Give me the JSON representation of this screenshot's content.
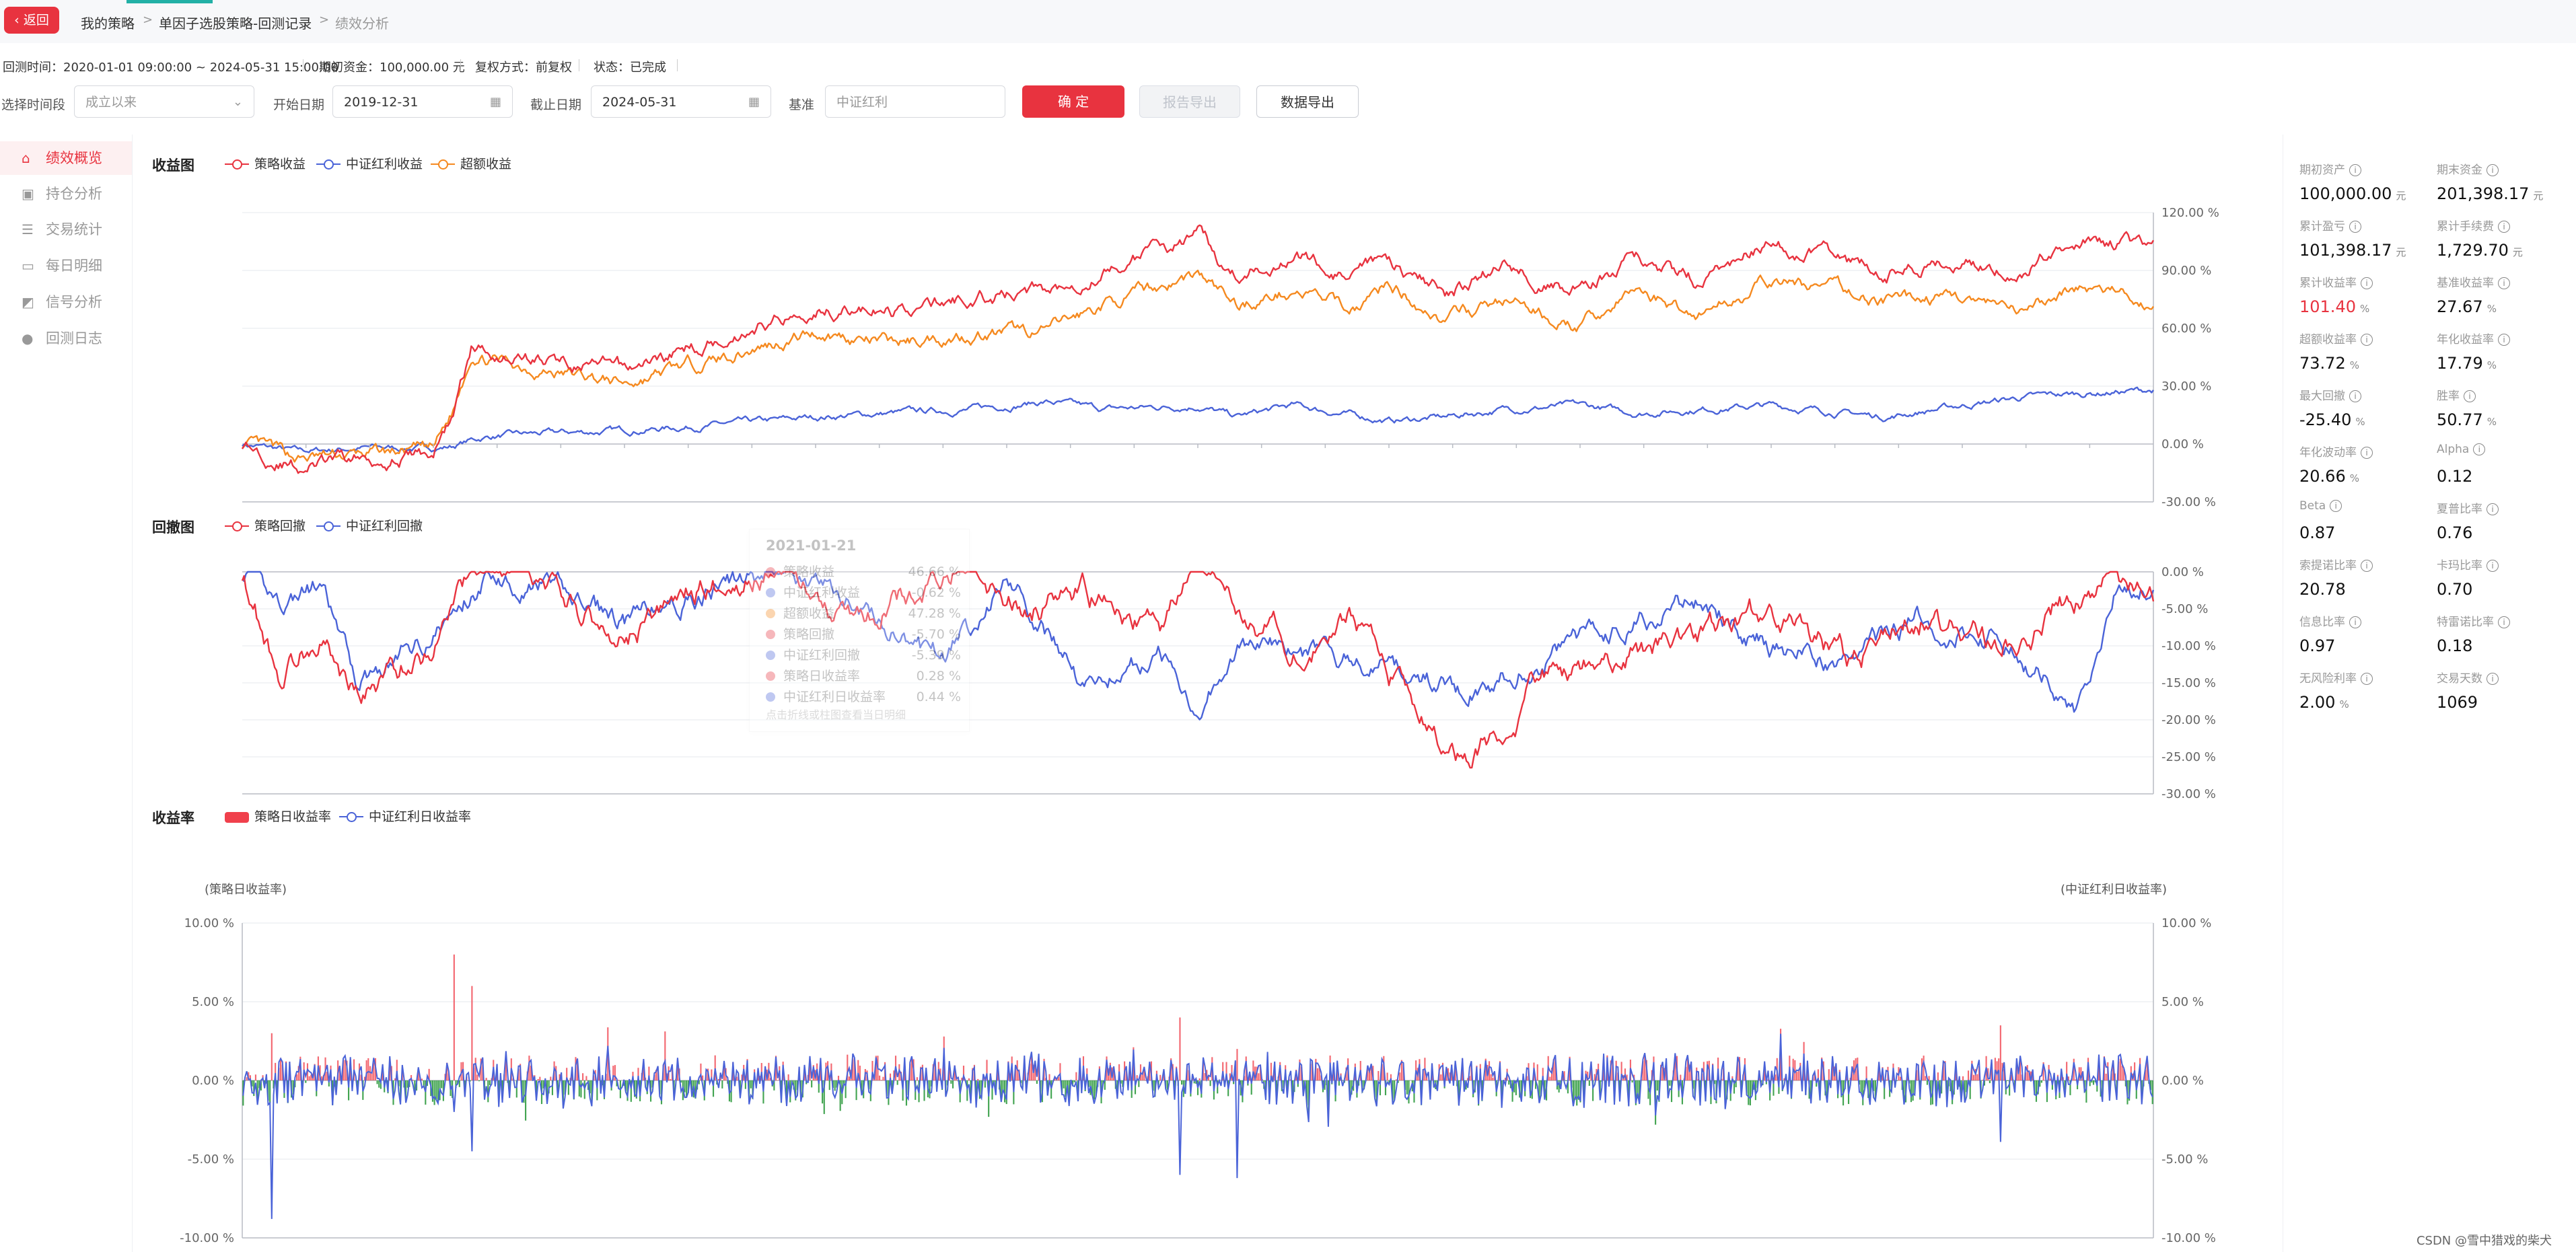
{
  "breadcrumb": {
    "back": "返回",
    "items": [
      "我的策略",
      "单因子选股策略-回测记录",
      "绩效分析"
    ],
    "sep": ">"
  },
  "info": {
    "time": "回测时间：2020-01-01 09:00:00 ~ 2024-05-31 15:00:00",
    "capital": "期初资金：100,000.00 元",
    "adjust": "复权方式：前复权",
    "status": "状态：已完成"
  },
  "filters": {
    "period_label": "选择时间段",
    "period_value": "成立以来",
    "start_label": "开始日期",
    "start_value": "2019-12-31",
    "end_label": "截止日期",
    "end_value": "2024-05-31",
    "bench_label": "基准",
    "bench_placeholder": "中证红利",
    "confirm": "确 定",
    "report_export": "报告导出",
    "data_export": "数据导出"
  },
  "sidebar": {
    "items": [
      {
        "label": "绩效概览",
        "icon": "home-icon"
      },
      {
        "label": "持仓分析",
        "icon": "briefcase-icon"
      },
      {
        "label": "交易统计",
        "icon": "list-icon"
      },
      {
        "label": "每日明细",
        "icon": "card-icon"
      },
      {
        "label": "信号分析",
        "icon": "chart-icon"
      },
      {
        "label": "回测日志",
        "icon": "info-icon"
      }
    ]
  },
  "metrics": [
    {
      "label": "期初资产",
      "value": "100,000.00",
      "unit": "元"
    },
    {
      "label": "期末资金",
      "value": "201,398.17",
      "unit": "元"
    },
    {
      "label": "累计盈亏",
      "value": "101,398.17",
      "unit": "元"
    },
    {
      "label": "累计手续费",
      "value": "1,729.70",
      "unit": "元"
    },
    {
      "label": "累计收益率",
      "value": "101.40",
      "unit": "%",
      "highlight": true
    },
    {
      "label": "基准收益率",
      "value": "27.67",
      "unit": "%"
    },
    {
      "label": "超额收益率",
      "value": "73.72",
      "unit": "%"
    },
    {
      "label": "年化收益率",
      "value": "17.79",
      "unit": "%"
    },
    {
      "label": "最大回撤",
      "value": "-25.40",
      "unit": "%"
    },
    {
      "label": "胜率",
      "value": "50.77",
      "unit": "%"
    },
    {
      "label": "年化波动率",
      "value": "20.66",
      "unit": "%"
    },
    {
      "label": "Alpha",
      "value": "0.12",
      "unit": ""
    },
    {
      "label": "Beta",
      "value": "0.87",
      "unit": ""
    },
    {
      "label": "夏普比率",
      "value": "0.76",
      "unit": ""
    },
    {
      "label": "索提诺比率",
      "value": "20.78",
      "unit": ""
    },
    {
      "label": "卡玛比率",
      "value": "0.70",
      "unit": ""
    },
    {
      "label": "信息比率",
      "value": "0.97",
      "unit": ""
    },
    {
      "label": "特雷诺比率",
      "value": "0.18",
      "unit": ""
    },
    {
      "label": "无风险利率",
      "value": "2.00",
      "unit": "%"
    },
    {
      "label": "交易天数",
      "value": "1069",
      "unit": ""
    }
  ],
  "colors": {
    "strategy": "#e8333f",
    "bench": "#4a63d8",
    "excess": "#f5891f",
    "neg": "#2e9a3e",
    "accent": "#e8333f"
  },
  "tooltip": {
    "date": "2021-01-21",
    "rows": [
      {
        "name": "策略收益",
        "value": "46.66 %",
        "color": "#e8333f"
      },
      {
        "name": "中证红利收益",
        "value": "-0.62 %",
        "color": "#4a63d8"
      },
      {
        "name": "超额收益",
        "value": "47.28 %",
        "color": "#f5891f"
      },
      {
        "name": "策略回撤",
        "value": "-5.70 %",
        "color": "#e8333f"
      },
      {
        "name": "中证红利回撤",
        "value": "-5.39 %",
        "color": "#4a63d8"
      },
      {
        "name": "策略日收益率",
        "value": "0.28 %",
        "color": "#e8333f"
      },
      {
        "name": "中证红利日收益率",
        "value": "0.44 %",
        "color": "#4a63d8"
      }
    ],
    "hint": "点击折线或柱图查看当日明细"
  },
  "watermark": "CSDN @雪中猎戏的柴犬",
  "chart_data": [
    {
      "type": "line",
      "title": "收益图",
      "x_range": [
        "2020-01-01",
        "2024-05-31"
      ],
      "ylim": [
        -30,
        120
      ],
      "yticks": [
        "120.00 %",
        "90.00 %",
        "60.00 %",
        "30.00 %",
        "0.00 %",
        "-30.00 %"
      ],
      "grid": true,
      "legend_position": "top-left",
      "x": [
        0,
        0.03,
        0.06,
        0.1,
        0.11,
        0.12,
        0.13,
        0.15,
        0.2,
        0.25,
        0.28,
        0.3,
        0.34,
        0.38,
        0.42,
        0.45,
        0.5,
        0.52,
        0.55,
        0.58,
        0.6,
        0.63,
        0.66,
        0.7,
        0.73,
        0.76,
        0.8,
        0.83,
        0.86,
        0.9,
        0.93,
        0.96,
        1.0
      ],
      "series": [
        {
          "name": "策略收益",
          "values": [
            0,
            -12,
            -8,
            -5,
            15,
            50,
            48,
            45,
            38,
            55,
            65,
            72,
            68,
            75,
            80,
            90,
            108,
            86,
            100,
            85,
            95,
            78,
            92,
            80,
            96,
            85,
            104,
            98,
            88,
            96,
            90,
            108,
            100
          ]
        },
        {
          "name": "中证红利收益",
          "values": [
            0,
            -4,
            -2,
            -2,
            -1,
            2,
            4,
            5,
            7,
            10,
            12,
            14,
            16,
            18,
            22,
            18,
            20,
            14,
            20,
            15,
            12,
            14,
            18,
            20,
            16,
            18,
            20,
            17,
            14,
            20,
            24,
            26,
            28
          ]
        },
        {
          "name": "超额收益",
          "values": [
            0,
            -8,
            -6,
            -3,
            16,
            48,
            44,
            40,
            31,
            45,
            53,
            58,
            52,
            57,
            58,
            72,
            88,
            72,
            80,
            70,
            83,
            64,
            74,
            60,
            80,
            67,
            84,
            81,
            74,
            76,
            66,
            82,
            72
          ]
        }
      ]
    },
    {
      "type": "line",
      "title": "回撤图",
      "x_range": [
        "2020-01-01",
        "2024-05-31"
      ],
      "ylim": [
        -30,
        0
      ],
      "yticks": [
        "0.00 %",
        "-5.00 %",
        "-10.00 %",
        "-15.00 %",
        "-20.00 %",
        "-25.00 %",
        "-30.00 %"
      ],
      "grid": true,
      "legend_position": "top-left",
      "x": [
        0,
        0.02,
        0.04,
        0.06,
        0.1,
        0.11,
        0.13,
        0.16,
        0.2,
        0.24,
        0.28,
        0.32,
        0.36,
        0.38,
        0.4,
        0.44,
        0.48,
        0.5,
        0.52,
        0.55,
        0.58,
        0.6,
        0.64,
        0.68,
        0.72,
        0.76,
        0.8,
        0.84,
        0.88,
        0.92,
        0.96,
        0.98,
        1.0
      ],
      "series": [
        {
          "name": "策略回撤",
          "values": [
            0,
            -14,
            -8,
            -17,
            -10,
            -3,
            0,
            -3,
            -9,
            -2,
            0,
            -6,
            -2,
            0,
            -5,
            -3,
            -8,
            0,
            -4,
            -10,
            -5,
            -14,
            -25,
            -15,
            -12,
            -8,
            -5,
            -12,
            -6,
            -10,
            -3,
            0,
            -5
          ]
        },
        {
          "name": "中证红利回撤",
          "values": [
            0,
            -4,
            -2,
            -15,
            -8,
            -6,
            0,
            -2,
            -7,
            -3,
            0,
            -4,
            -12,
            -8,
            0,
            -15,
            -11,
            -18,
            -10,
            -11,
            -12,
            -13,
            -16,
            -12,
            -7,
            -4,
            -10,
            -12,
            -6,
            -9,
            -18,
            -3,
            -1
          ]
        }
      ]
    },
    {
      "type": "bar",
      "title": "收益率",
      "y_left_label": "(策略日收益率)",
      "y_right_label": "(中证红利日收益率)",
      "ylim": [
        -10,
        10
      ],
      "yticks": [
        "10.00 %",
        "5.00 %",
        "0.00 %",
        "-5.00 %",
        "-10.00 %"
      ],
      "grid": true,
      "legend_position": "top-left",
      "series": [
        {
          "name": "策略日收益率",
          "kind": "bar"
        },
        {
          "name": "中证红利日收益率",
          "kind": "line"
        }
      ],
      "notable_points": [
        {
          "x": 0.015,
          "strategy": 3.0,
          "bench": -8.8
        },
        {
          "x": 0.11,
          "strategy": 8.0,
          "bench": -2.0
        },
        {
          "x": 0.12,
          "strategy": 6.0,
          "bench": -4.5
        },
        {
          "x": 0.49,
          "strategy": 4.0,
          "bench": -6.0
        },
        {
          "x": 0.52,
          "strategy": 2.0,
          "bench": -6.2
        },
        {
          "x": 0.92,
          "strategy": 3.5,
          "bench": -3.9
        }
      ]
    }
  ]
}
